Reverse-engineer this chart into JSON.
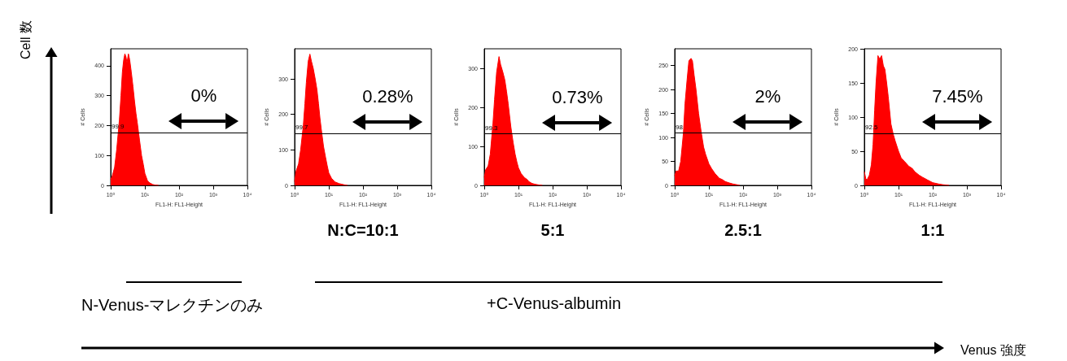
{
  "chart_data": [
    {
      "type": "area",
      "xlabel": "FL1-H: FL1-Height",
      "ylabel": "# Cells",
      "log": "x",
      "xlim": [
        1,
        10000
      ],
      "xticks": [
        {
          "value": 1,
          "label": "10⁰"
        },
        {
          "value": 10,
          "label": "10¹"
        },
        {
          "value": 100,
          "label": "10²"
        },
        {
          "value": 1000,
          "label": "10³"
        },
        {
          "value": 10000,
          "label": "10⁴"
        }
      ],
      "ylim": [
        0,
        457
      ],
      "yticks": [
        0,
        100,
        200,
        300,
        400
      ],
      "grid": false,
      "annotations": [
        "0%",
        {
          "text": "99.9",
          "y": 176
        }
      ],
      "ref_lines": [
        {
          "axis": "y",
          "value": 176
        }
      ],
      "series": [
        {
          "color": "#ff0000",
          "x": [
            1,
            1.1,
            1.3,
            1.5,
            1.8,
            2.0,
            2.2,
            2.4,
            2.6,
            2.8,
            3.0,
            3.3,
            3.6,
            4.0,
            4.5,
            5,
            5.5,
            6,
            7,
            8,
            9,
            10,
            12,
            14,
            17,
            20,
            25
          ],
          "values": [
            20,
            30,
            60,
            120,
            220,
            300,
            380,
            420,
            440,
            430,
            410,
            440,
            420,
            380,
            330,
            280,
            240,
            210,
            150,
            100,
            70,
            40,
            15,
            8,
            3,
            1,
            0
          ]
        }
      ]
    },
    {
      "type": "area",
      "xlabel": "FL1-H: FL1-Height",
      "ylabel": "# Cells",
      "log": "x",
      "xlim": [
        1,
        10000
      ],
      "xticks": [
        {
          "value": 1,
          "label": "10⁰"
        },
        {
          "value": 10,
          "label": "10¹"
        },
        {
          "value": 100,
          "label": "10²"
        },
        {
          "value": 1000,
          "label": "10³"
        },
        {
          "value": 10000,
          "label": "10⁴"
        }
      ],
      "ylim": [
        0,
        385
      ],
      "yticks": [
        0,
        100,
        200,
        300
      ],
      "grid": false,
      "annotations": [
        "0.28%",
        "N:C=10:1",
        {
          "text": "99.7",
          "y": 147
        }
      ],
      "ref_lines": [
        {
          "axis": "y",
          "value": 147
        }
      ],
      "series": [
        {
          "color": "#ff0000",
          "x": [
            1,
            1.1,
            1.3,
            1.5,
            1.8,
            2.0,
            2.2,
            2.5,
            2.8,
            3.1,
            3.5,
            4,
            4.5,
            5,
            5.5,
            6,
            7,
            8,
            9,
            10,
            12,
            15,
            20,
            30,
            35
          ],
          "values": [
            10,
            40,
            60,
            100,
            170,
            230,
            290,
            350,
            370,
            350,
            330,
            300,
            270,
            230,
            190,
            160,
            110,
            80,
            55,
            35,
            20,
            10,
            5,
            1,
            0
          ]
        }
      ]
    },
    {
      "type": "area",
      "xlabel": "FL1-H: FL1-Height",
      "ylabel": "# Cells",
      "log": "x",
      "xlim": [
        1,
        10000
      ],
      "xticks": [
        {
          "value": 1,
          "label": "10⁰"
        },
        {
          "value": 10,
          "label": "10¹"
        },
        {
          "value": 100,
          "label": "10²"
        },
        {
          "value": 1000,
          "label": "10³"
        },
        {
          "value": 10000,
          "label": "10⁴"
        }
      ],
      "ylim": [
        0,
        350
      ],
      "yticks": [
        0,
        100,
        200,
        300
      ],
      "grid": false,
      "annotations": [
        "0.73%",
        "5:1",
        {
          "text": "99.3",
          "y": 132
        }
      ],
      "ref_lines": [
        {
          "axis": "y",
          "value": 132
        }
      ],
      "series": [
        {
          "color": "#ff0000",
          "x": [
            1,
            1.1,
            1.3,
            1.5,
            1.8,
            2.0,
            2.3,
            2.7,
            3.0,
            3.5,
            4,
            4.5,
            5,
            6,
            7,
            8,
            9,
            10,
            12,
            15,
            18,
            20,
            25,
            30,
            40,
            50
          ],
          "values": [
            20,
            40,
            50,
            80,
            160,
            220,
            290,
            330,
            310,
            290,
            270,
            240,
            210,
            150,
            110,
            80,
            60,
            45,
            30,
            20,
            15,
            10,
            5,
            3,
            1,
            0
          ]
        }
      ]
    },
    {
      "type": "area",
      "xlabel": "FL1-H: FL1-Height",
      "ylabel": "# Cells",
      "log": "x",
      "xlim": [
        1,
        10000
      ],
      "xticks": [
        {
          "value": 1,
          "label": "10⁰"
        },
        {
          "value": 10,
          "label": "10¹"
        },
        {
          "value": 100,
          "label": "10²"
        },
        {
          "value": 1000,
          "label": "10³"
        },
        {
          "value": 10000,
          "label": "10⁴"
        }
      ],
      "ylim": [
        0,
        285
      ],
      "yticks": [
        0,
        50,
        100,
        150,
        200,
        250
      ],
      "grid": false,
      "annotations": [
        "2%",
        "2.5:1",
        {
          "text": "98",
          "y": 109
        }
      ],
      "ref_lines": [
        {
          "axis": "y",
          "value": 109
        }
      ],
      "series": [
        {
          "color": "#ff0000",
          "x": [
            1,
            1.1,
            1.3,
            1.5,
            1.8,
            2.0,
            2.3,
            2.6,
            3.0,
            3.3,
            3.7,
            4.2,
            5,
            6,
            7,
            8,
            10,
            12,
            15,
            20,
            25,
            30,
            40,
            50,
            70,
            80
          ],
          "values": [
            20,
            30,
            30,
            50,
            110,
            170,
            220,
            260,
            265,
            260,
            230,
            200,
            150,
            110,
            80,
            65,
            45,
            35,
            25,
            15,
            12,
            8,
            5,
            3,
            1,
            0
          ]
        }
      ]
    },
    {
      "type": "area",
      "xlabel": "FL1-H: FL1-Height",
      "ylabel": "# Cells",
      "log": "x",
      "xlim": [
        1,
        10000
      ],
      "xticks": [
        {
          "value": 1,
          "label": "10⁰"
        },
        {
          "value": 10,
          "label": "10¹"
        },
        {
          "value": 100,
          "label": "10²"
        },
        {
          "value": 1000,
          "label": "10³"
        },
        {
          "value": 10000,
          "label": "10⁴"
        }
      ],
      "ylim": [
        0,
        200
      ],
      "yticks": [
        0,
        50,
        100,
        150,
        200
      ],
      "grid": false,
      "annotations": [
        "7.45%",
        "1:1",
        {
          "text": "92.5",
          "y": 76
        }
      ],
      "ref_lines": [
        {
          "axis": "y",
          "value": 76
        }
      ],
      "series": [
        {
          "color": "#ff0000",
          "x": [
            1,
            1.1,
            1.2,
            1.4,
            1.6,
            1.8,
            2.0,
            2.2,
            2.5,
            2.8,
            3.2,
            3.6,
            4,
            4.5,
            5,
            6,
            7,
            8,
            10,
            12,
            15,
            20,
            25,
            30,
            40,
            50,
            70,
            100,
            150,
            200,
            300
          ],
          "values": [
            20,
            10,
            8,
            15,
            30,
            60,
            110,
            150,
            190,
            185,
            190,
            175,
            170,
            150,
            130,
            90,
            75,
            65,
            50,
            40,
            35,
            28,
            25,
            20,
            15,
            12,
            8,
            4,
            2,
            1,
            0
          ]
        }
      ]
    },
    {
      "type": "other",
      "annotations": [
        "Cell 数",
        "Venus 強度",
        "N-Venus-マレクチンのみ",
        "+C-Venus-albumin"
      ]
    }
  ]
}
